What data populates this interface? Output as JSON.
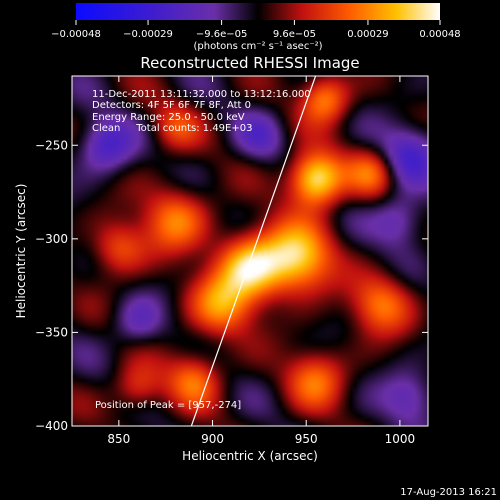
{
  "chart_data": {
    "type": "heatmap",
    "title": "Reconstructed RHESSI Image",
    "xlabel": "Heliocentric X (arcsec)",
    "ylabel": "Heliocentric Y (arcsec)",
    "xlim": [
      825,
      1015
    ],
    "ylim": [
      -400,
      -213
    ],
    "x_ticks": [
      850,
      900,
      950,
      1000
    ],
    "x_tick_labels": [
      "850",
      "900",
      "950",
      "1000"
    ],
    "y_ticks": [
      -250,
      -300,
      -350,
      -400
    ],
    "y_tick_labels": [
      "−250",
      "−300",
      "−350",
      "−400"
    ],
    "colorbar": {
      "range": [
        -0.00048,
        0.00048
      ],
      "tick_values": [
        -0.00048,
        -0.00029,
        -9.6e-05,
        9.6e-05,
        0.00029,
        0.00048
      ],
      "tick_labels": [
        "−0.00048",
        "−0.00029",
        "−9.6e−05",
        "9.6e−05",
        "0.00029",
        "0.00048"
      ],
      "units_label": "(photons cm⁻² s⁻¹ asec⁻²)"
    },
    "info": {
      "time_range": "11-Dec-2011 13:11:32.000 to 13:12:16.000",
      "detectors": "Detectors: 4F 5F 6F 7F 8F, Att 0",
      "energy": "Energy Range: 25.0 - 50.0 keV",
      "method": "Clean     Total counts: 1.49E+03"
    },
    "peak_label": "Position of Peak = [957,-274]",
    "peak": {
      "x": 957,
      "y": -274
    },
    "limb_line": {
      "x1": 888,
      "y1": -402,
      "x2": 955,
      "y2": -213
    },
    "sources": [
      {
        "x": 955,
        "y": -268,
        "amp": 1.0,
        "sigma": 10
      },
      {
        "x": 945,
        "y": -310,
        "amp": 0.85,
        "sigma": 13
      },
      {
        "x": 920,
        "y": -315,
        "amp": 0.8,
        "sigma": 12
      },
      {
        "x": 905,
        "y": -335,
        "amp": 0.6,
        "sigma": 12
      },
      {
        "x": 880,
        "y": -290,
        "amp": 0.55,
        "sigma": 12
      },
      {
        "x": 850,
        "y": -305,
        "amp": 0.45,
        "sigma": 10
      },
      {
        "x": 960,
        "y": -225,
        "amp": 0.6,
        "sigma": 9
      },
      {
        "x": 985,
        "y": -265,
        "amp": 0.45,
        "sigma": 9
      },
      {
        "x": 990,
        "y": -335,
        "amp": 0.55,
        "sigma": 11
      },
      {
        "x": 955,
        "y": -375,
        "amp": 0.5,
        "sigma": 11
      },
      {
        "x": 890,
        "y": -375,
        "amp": 0.5,
        "sigma": 10
      },
      {
        "x": 860,
        "y": -380,
        "amp": 0.4,
        "sigma": 9
      },
      {
        "x": 880,
        "y": -240,
        "amp": 0.35,
        "sigma": 9
      },
      {
        "x": 843,
        "y": -250,
        "amp": -0.5,
        "sigma": 10
      },
      {
        "x": 1005,
        "y": -255,
        "amp": -0.45,
        "sigma": 11
      },
      {
        "x": 1000,
        "y": -290,
        "amp": -0.4,
        "sigma": 10
      },
      {
        "x": 1005,
        "y": -385,
        "amp": -0.35,
        "sigma": 10
      },
      {
        "x": 860,
        "y": -345,
        "amp": -0.3,
        "sigma": 9
      },
      {
        "x": 925,
        "y": -245,
        "amp": -0.3,
        "sigma": 9
      }
    ]
  },
  "footer": {
    "timestamp": "17-Aug-2013 16:21"
  }
}
